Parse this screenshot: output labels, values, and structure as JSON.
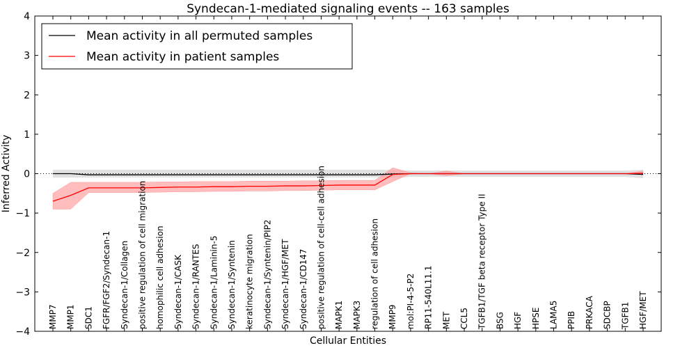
{
  "chart_data": {
    "type": "line",
    "title": "Syndecan-1-mediated signaling events -- 163 samples",
    "xlabel": "Cellular Entities",
    "ylabel": "Inferred Activity",
    "ylim": [
      -4,
      4
    ],
    "yticks": [
      "4",
      "3",
      "2",
      "1",
      "0",
      "−1",
      "−2",
      "−3",
      "−4"
    ],
    "ytick_values": [
      4,
      3,
      2,
      1,
      0,
      -1,
      -2,
      -3,
      -4
    ],
    "legend_position": "top-left",
    "categories": [
      "MMP7",
      "MMP1",
      "SDC1",
      "FGFR/FGF2/Syndecan-1",
      "Syndecan-1/Collagen",
      "positive regulation of cell migration",
      "homophilic cell adhesion",
      "Syndecan-1/CASK",
      "Syndecan-1/RANTES",
      "Syndecan-1/Laminin-5",
      "Syndecan-1/Syntenin",
      "keratinocyte migration",
      "Syndecan-1/Syntenin/PIP2",
      "Syndecan-1/HGF/MET",
      "Syndecan-1/CD147",
      "positive regulation of cell-cell adhesion",
      "MAPK1",
      "MAPK3",
      "regulation of cell adhesion",
      "MMP9",
      "mol:PI-4-5-P2",
      "RP11-540L11.1",
      "MET",
      "CCL5",
      "TGFB1/TGF beta receptor Type II",
      "BSG",
      "HGF",
      "HPSE",
      "LAMA5",
      "PPIB",
      "PRKACA",
      "SDCBP",
      "TGFB1",
      "HGF/MET"
    ],
    "series": [
      {
        "name": "Mean activity in all permuted samples",
        "color": "#000000",
        "band_color": "#c8c8c8",
        "values": [
          0.0,
          0.0,
          -0.03,
          -0.03,
          -0.03,
          -0.03,
          -0.03,
          -0.03,
          -0.03,
          -0.03,
          -0.03,
          -0.03,
          -0.03,
          -0.03,
          -0.03,
          -0.03,
          -0.03,
          -0.03,
          -0.03,
          -0.01,
          0.0,
          0.0,
          0.0,
          0.0,
          0.0,
          0.0,
          0.0,
          0.0,
          0.0,
          0.0,
          0.0,
          0.0,
          0.0,
          -0.02
        ],
        "lower": [
          -0.1,
          -0.1,
          -0.1,
          -0.1,
          -0.1,
          -0.1,
          -0.1,
          -0.1,
          -0.1,
          -0.1,
          -0.1,
          -0.1,
          -0.1,
          -0.1,
          -0.1,
          -0.1,
          -0.1,
          -0.1,
          -0.1,
          -0.1,
          -0.08,
          -0.08,
          -0.08,
          -0.08,
          -0.08,
          -0.08,
          -0.08,
          -0.08,
          -0.08,
          -0.08,
          -0.08,
          -0.08,
          -0.08,
          -0.12
        ],
        "upper": [
          0.1,
          0.1,
          0.1,
          0.1,
          0.1,
          0.1,
          0.1,
          0.1,
          0.1,
          0.1,
          0.1,
          0.1,
          0.1,
          0.1,
          0.1,
          0.1,
          0.1,
          0.1,
          0.1,
          0.1,
          0.08,
          0.08,
          0.08,
          0.08,
          0.08,
          0.08,
          0.08,
          0.08,
          0.08,
          0.08,
          0.08,
          0.08,
          0.08,
          0.1
        ]
      },
      {
        "name": "Mean activity in patient samples",
        "color": "#ff0000",
        "band_color": "#ff9999",
        "values": [
          -0.7,
          -0.55,
          -0.36,
          -0.36,
          -0.36,
          -0.36,
          -0.35,
          -0.34,
          -0.34,
          -0.33,
          -0.33,
          -0.32,
          -0.32,
          -0.31,
          -0.31,
          -0.3,
          -0.29,
          -0.29,
          -0.29,
          -0.02,
          0.0,
          0.0,
          0.0,
          0.0,
          0.0,
          0.0,
          0.0,
          0.0,
          0.0,
          0.0,
          0.0,
          0.0,
          0.0,
          0.01
        ],
        "lower": [
          -0.9,
          -0.9,
          -0.48,
          -0.48,
          -0.48,
          -0.48,
          -0.47,
          -0.46,
          -0.46,
          -0.45,
          -0.45,
          -0.44,
          -0.44,
          -0.43,
          -0.43,
          -0.42,
          -0.41,
          -0.41,
          -0.41,
          -0.2,
          0.0,
          0.0,
          -0.05,
          0.0,
          0.0,
          0.0,
          0.0,
          0.0,
          0.0,
          0.0,
          0.0,
          0.0,
          0.0,
          0.0
        ],
        "upper": [
          -0.5,
          -0.22,
          -0.22,
          -0.22,
          -0.22,
          -0.22,
          -0.21,
          -0.21,
          -0.2,
          -0.2,
          -0.2,
          -0.19,
          -0.19,
          -0.19,
          -0.18,
          -0.18,
          -0.17,
          -0.17,
          -0.17,
          0.15,
          0.02,
          0.0,
          0.07,
          0.0,
          0.0,
          0.0,
          0.0,
          0.0,
          0.0,
          0.0,
          0.0,
          0.0,
          0.0,
          0.07
        ]
      }
    ]
  }
}
